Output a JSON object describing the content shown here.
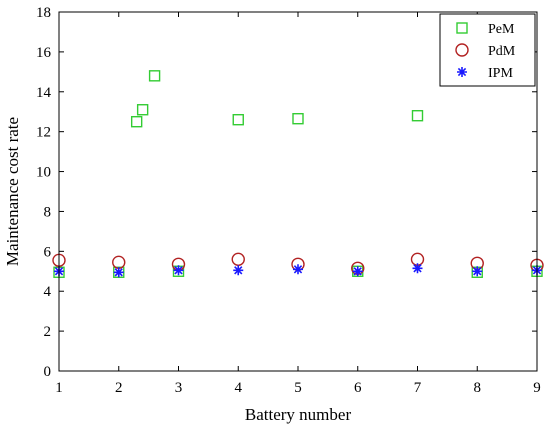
{
  "chart_data": {
    "type": "scatter",
    "title": "",
    "xlabel": "Battery number",
    "ylabel": "Maintenance cost rate",
    "xlim": [
      1,
      9
    ],
    "ylim": [
      0,
      18
    ],
    "xticks": [
      "1",
      "2",
      "3",
      "4",
      "5",
      "6",
      "7",
      "8",
      "9"
    ],
    "yticks": [
      "0",
      "2",
      "4",
      "6",
      "8",
      "10",
      "12",
      "14",
      "16",
      "18"
    ],
    "grid": false,
    "legend_position": "top-right",
    "x": [
      1,
      2,
      3,
      4,
      5,
      6,
      7,
      8,
      9
    ],
    "series": [
      {
        "name": "PeM",
        "marker": "square",
        "color": "#33cc33",
        "x": [
          1,
          2,
          2.3,
          2.4,
          2.6,
          3,
          4,
          5,
          6,
          7,
          8,
          9
        ],
        "values": [
          4.95,
          4.95,
          12.5,
          13.1,
          14.8,
          5.0,
          12.6,
          12.65,
          5.0,
          12.8,
          4.95,
          5.0
        ]
      },
      {
        "name": "PdM",
        "marker": "circle",
        "color": "#b22222",
        "x": [
          1,
          2,
          3,
          4,
          5,
          6,
          7,
          8,
          9
        ],
        "values": [
          5.55,
          5.45,
          5.35,
          5.6,
          5.35,
          5.15,
          5.6,
          5.4,
          5.3
        ]
      },
      {
        "name": "IPM",
        "marker": "asterisk",
        "color": "#1a1aff",
        "x": [
          1,
          2,
          3,
          4,
          5,
          6,
          7,
          8,
          9
        ],
        "values": [
          5.0,
          4.95,
          5.05,
          5.05,
          5.1,
          5.0,
          5.15,
          5.0,
          5.05
        ]
      }
    ]
  }
}
